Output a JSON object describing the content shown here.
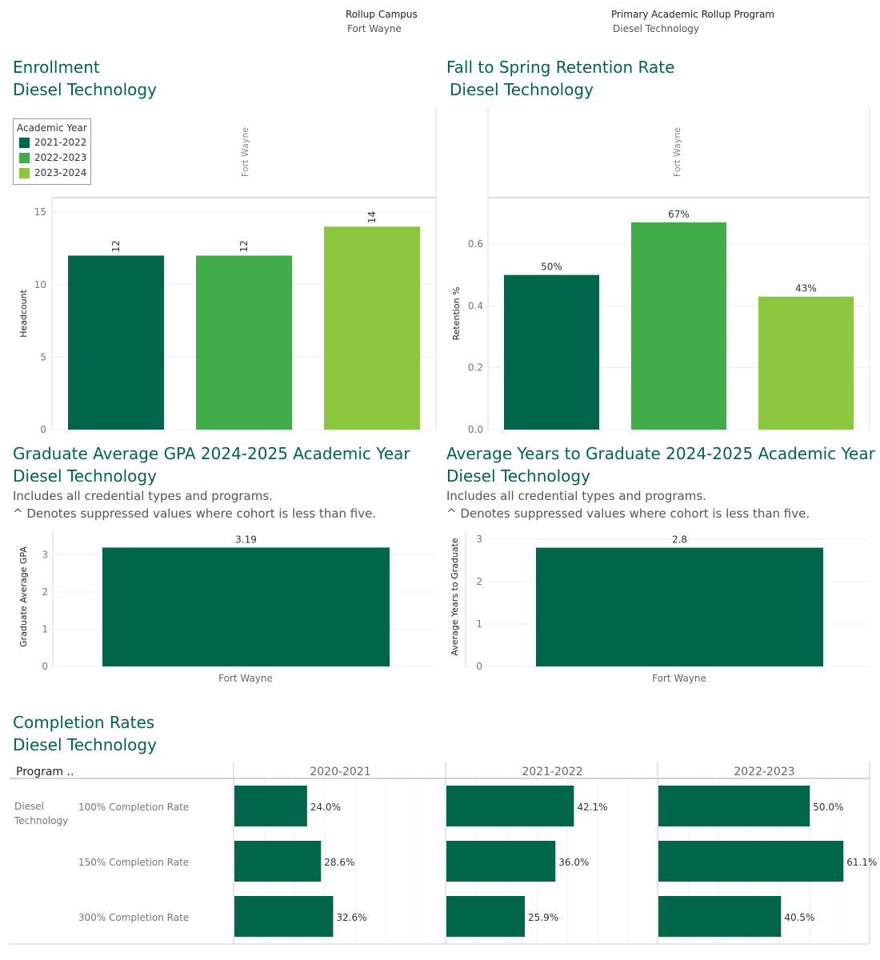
{
  "filters": {
    "campus_label": "Rollup Campus",
    "campus_value": "Fort Wayne",
    "program_label": "Primary Academic Rollup Program",
    "program_value": "Diesel Technology"
  },
  "colors": {
    "dark_green": "#00664a",
    "mid_green": "#41ad49",
    "light_green": "#8dc63f",
    "title_green": "#00664a"
  },
  "legend": {
    "title": "Academic Year",
    "items": [
      {
        "label": "2021-2022",
        "color": "#00664a"
      },
      {
        "label": "2022-2023",
        "color": "#41ad49"
      },
      {
        "label": "2023-2024",
        "color": "#8dc63f"
      }
    ]
  },
  "enrollment": {
    "title": "Enrollment",
    "subtitle": "Diesel Technology"
  },
  "retention": {
    "title": "Fall to Spring Retention Rate",
    "subtitle": "Diesel Technology"
  },
  "gpa": {
    "title": "Graduate Average GPA 2024-2025 Academic Year",
    "subtitle": "Diesel Technology",
    "note1": "Includes all credential types and programs.",
    "note2": "^ Denotes suppressed values where cohort is less than five."
  },
  "years": {
    "title": "Average Years to Graduate 2024-2025 Academic Year",
    "subtitle": "Diesel Technology",
    "note1": "Includes all credential types and programs.",
    "note2": "^ Denotes suppressed values where cohort is less than five."
  },
  "completion": {
    "title": "Completion Rates",
    "subtitle": "Diesel Technology"
  },
  "chart_data": [
    {
      "id": "enrollment",
      "type": "bar",
      "pane_label": "Fort Wayne",
      "ylabel": "Headcount",
      "ylim": [
        0,
        16
      ],
      "yticks": [
        0,
        5,
        10,
        15
      ],
      "categories": [
        "2021-2022",
        "2022-2023",
        "2023-2024"
      ],
      "values": [
        12,
        12,
        14
      ],
      "labels": [
        "12",
        "12",
        "14"
      ],
      "colors": [
        "#00664a",
        "#41ad49",
        "#8dc63f"
      ]
    },
    {
      "id": "retention",
      "type": "bar",
      "pane_label": "Fort Wayne",
      "ylabel": "Retention %",
      "ylim": [
        0,
        0.75
      ],
      "yticks": [
        0.0,
        0.2,
        0.4,
        0.6
      ],
      "ytick_labels": [
        "0.0",
        "0.2",
        "0.4",
        "0.6"
      ],
      "categories": [
        "2021-2022",
        "2022-2023",
        "2023-2024"
      ],
      "values": [
        0.5,
        0.67,
        0.43
      ],
      "labels": [
        "50%",
        "67%",
        "43%"
      ],
      "colors": [
        "#00664a",
        "#41ad49",
        "#8dc63f"
      ]
    },
    {
      "id": "gpa",
      "type": "bar",
      "ylabel": "Graduate Average GPA",
      "ylim": [
        0,
        3.5
      ],
      "yticks": [
        0,
        1,
        2,
        3
      ],
      "categories": [
        "Fort Wayne"
      ],
      "values": [
        3.19
      ],
      "labels": [
        "3.19"
      ],
      "colors": [
        "#00664a"
      ]
    },
    {
      "id": "years",
      "type": "bar",
      "ylabel": "Average Years to Graduate",
      "ylim": [
        0,
        3.0
      ],
      "yticks": [
        0,
        1,
        2,
        3
      ],
      "categories": [
        "Fort Wayne"
      ],
      "values": [
        2.8
      ],
      "labels": [
        "2.8"
      ],
      "colors": [
        "#00664a"
      ]
    },
    {
      "id": "completion",
      "type": "bar",
      "orientation": "horizontal",
      "row_header": "Program ..",
      "program": "Diesel Technology",
      "years": [
        "2020-2021",
        "2021-2022",
        "2022-2023"
      ],
      "rates": [
        "100% Completion Rate",
        "150% Completion Rate",
        "300% Completion Rate"
      ],
      "values": [
        [
          24.0,
          28.6,
          32.6
        ],
        [
          42.1,
          36.0,
          25.9
        ],
        [
          50.0,
          61.1,
          40.5
        ]
      ],
      "labels": [
        [
          "24.0%",
          "28.6%",
          "32.6%"
        ],
        [
          "42.1%",
          "36.0%",
          "25.9%"
        ],
        [
          "50.0%",
          "61.1%",
          "40.5%"
        ]
      ],
      "xlim": [
        0,
        70
      ],
      "color": "#00664a"
    }
  ]
}
